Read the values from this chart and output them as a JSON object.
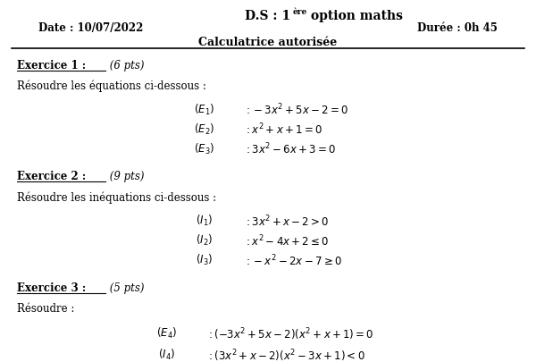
{
  "title_part1": "D.S : 1",
  "title_sup": "ère",
  "title_part2": " option maths",
  "date": "Date : 10/07/2022",
  "duree": "Durée : 0h 45",
  "calculatrice": "Calculatrice autorisée",
  "ex1_intro": "Résoudre les équations ci-dessous :",
  "ex2_intro": "Résoudre les inéquations ci-dessous :",
  "ex3_intro": "Résoudre :",
  "bg_color": "#ffffff",
  "text_color": "#000000",
  "line_color": "#000000"
}
